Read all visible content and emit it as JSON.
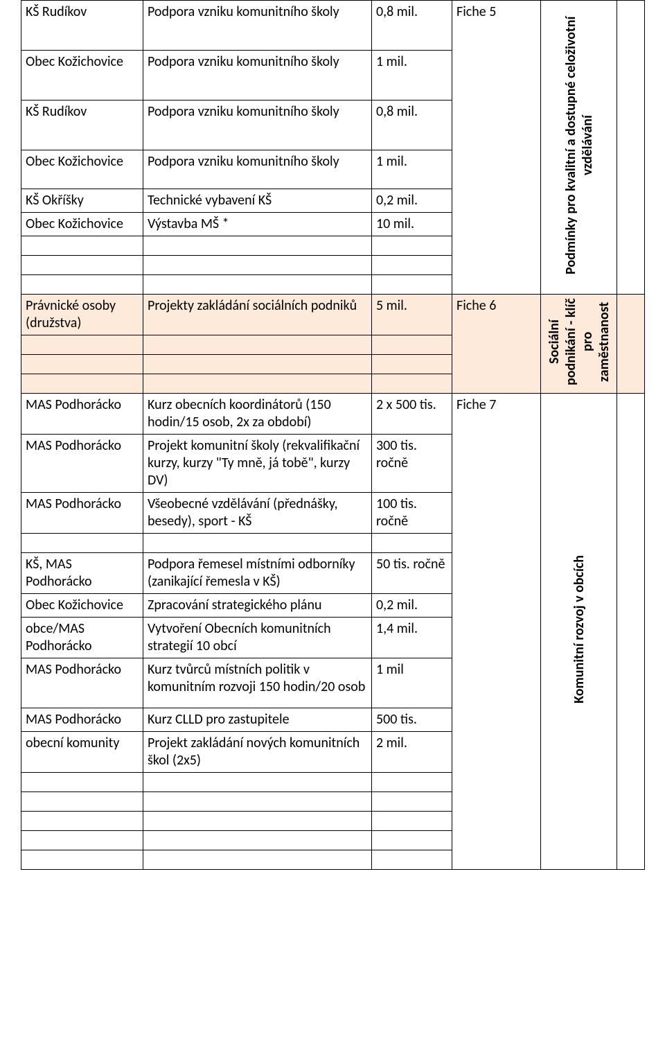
{
  "section1": {
    "fiche": "Fiche 5",
    "vertical_label": "Podmínky pro kvalitní a dostupné celoživotní vzdělávání",
    "rows": [
      {
        "a": "KŠ Rudíkov",
        "b": "Podpora vzniku komunitního školy",
        "c": "0,8 mil."
      },
      {
        "a": "Obec Kožichovice",
        "b": "Podpora vzniku komunitního školy",
        "c": "1 mil."
      },
      {
        "a": "KŠ Rudíkov",
        "b": "Podpora vzniku komunitního školy",
        "c": "0,8 mil."
      },
      {
        "a": "Obec Kožichovice",
        "b": "Podpora vzniku komunitního školy",
        "c": "1 mil."
      },
      {
        "a": "KŠ Okříšky",
        "b": "Technické vybavení KŠ",
        "c": "0,2 mil."
      },
      {
        "a": "Obec Kožichovice",
        "b": "Výstavba MŠ *",
        "c": "10 mil."
      }
    ]
  },
  "section2": {
    "fiche": "Fiche 6",
    "vertical_label": "Sociální podnikání - klíč pro zaměstnanost",
    "rows": [
      {
        "a": "Právnické osoby (družstva)",
        "b": "Projekty zakládání sociálních podniků",
        "c": "5 mil."
      }
    ]
  },
  "section3": {
    "fiche": "Fiche 7",
    "vertical_label": "Komunitní rozvoj v obcích",
    "rows": [
      {
        "a": "MAS Podhorácko",
        "b": "Kurz obecních koordinátorů (150 hodin/15 osob, 2x za období)",
        "c": "2 x 500 tis."
      },
      {
        "a": "MAS Podhorácko",
        "b": "Projekt komunitní školy (rekvalifikační kurzy, kurzy \"Ty mně, já tobě\", kurzy DV)",
        "c": "300 tis. ročně"
      },
      {
        "a": "MAS Podhorácko",
        "b": "Všeobecné vzdělávání (přednášky, besedy), sport - KŠ",
        "c": "100 tis. ročně"
      },
      {
        "a": "KŠ, MAS Podhorácko",
        "b": "Podpora řemesel místními odborníky (zanikající řemesla v KŠ)",
        "c": "50 tis. ročně"
      },
      {
        "a": "Obec Kožichovice",
        "b": "Zpracování strategického plánu",
        "c": "0,2 mil."
      },
      {
        "a": "obce/MAS Podhorácko",
        "b": "Vytvoření Obecních komunitních strategií 10 obcí",
        "c": "1,4 mil."
      },
      {
        "a": "MAS Podhorácko",
        "b": "Kurz tvůrců místních politik v komunitním rozvoji 150 hodin/20 osob",
        "c": "1 mil"
      },
      {
        "a": "MAS Podhorácko",
        "b": "Kurz CLLD pro zastupitele",
        "c": "500 tis."
      },
      {
        "a": "obecní komunity",
        "b": "Projekt zakládání nových komunitních škol (2x5)",
        "c": "2 mil."
      }
    ]
  },
  "colors": {
    "highlight": "#fdeada",
    "border": "#000000",
    "bg": "#ffffff"
  }
}
